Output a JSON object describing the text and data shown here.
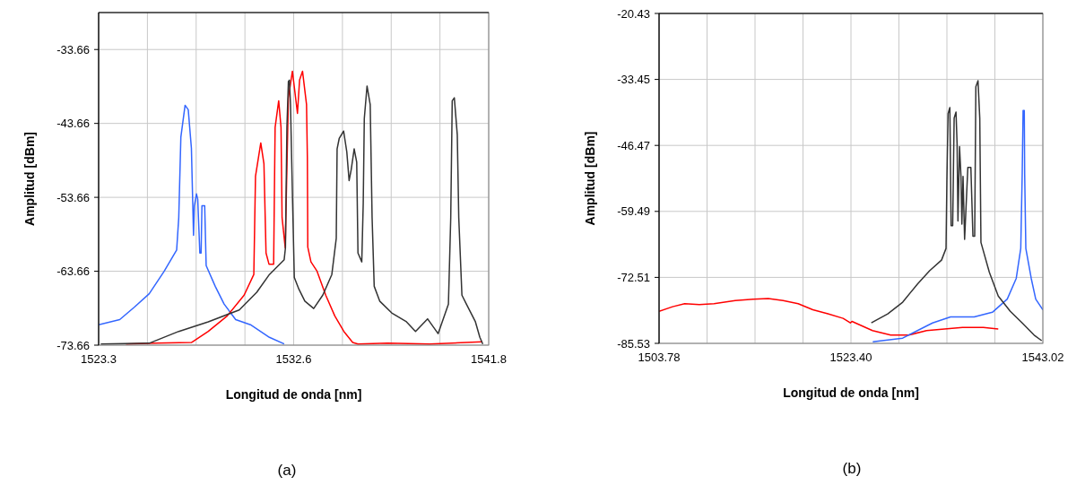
{
  "chart_data": [
    {
      "type": "line",
      "xlabel": "Longitud de onda [nm]",
      "ylabel": "Amplitud [dBm]",
      "annotations": [
        "(a)"
      ],
      "grid": true,
      "xlim": [
        1523.3,
        1541.8
      ],
      "ylim": [
        -73.66,
        -28.66
      ],
      "xticks": [
        1523.3,
        {
          "value": 1525.6125,
          "label": null
        },
        {
          "value": 1527.925,
          "label": null
        },
        {
          "value": 1530.2375,
          "label": null
        },
        {
          "value": 1532.55,
          "label": "1532.6"
        },
        {
          "value": 1534.8625,
          "label": null
        },
        {
          "value": 1537.175,
          "label": null
        },
        {
          "value": 1539.4875,
          "label": null
        },
        1541.8
      ],
      "yticks": [
        -73.66,
        -63.66,
        -53.66,
        -43.66,
        -33.66
      ],
      "series": [
        {
          "color": "#3366ff",
          "x": [
            1523.3,
            1524.3,
            1525.0,
            1525.7,
            1526.4,
            1527.0,
            1527.1,
            1527.2,
            1527.4,
            1527.55,
            1527.7,
            1527.8,
            1527.84,
            1527.94,
            1528.0,
            1528.1,
            1528.16,
            1528.2,
            1528.33,
            1528.4,
            1528.83,
            1529.25,
            1529.8,
            1530.5,
            1531.4,
            1532.1
          ],
          "values": [
            -70.9,
            -70.2,
            -68.5,
            -66.7,
            -63.7,
            -60.8,
            -56.4,
            -45.5,
            -41.2,
            -41.8,
            -47.0,
            -58.8,
            -54.8,
            -53.2,
            -53.9,
            -61.2,
            -61.2,
            -54.8,
            -54.8,
            -62.9,
            -65.7,
            -68.1,
            -70.2,
            -70.9,
            -72.6,
            -73.5
          ]
        },
        {
          "color": "#ff0000",
          "x": [
            1524.6,
            1526.0,
            1527.7,
            1528.5,
            1529.4,
            1530.2,
            1530.66,
            1530.74,
            1530.99,
            1531.14,
            1531.24,
            1531.38,
            1531.6,
            1531.67,
            1531.84,
            1531.95,
            1532.0,
            1532.15,
            1532.3,
            1532.49,
            1532.73,
            1532.83,
            1532.97,
            1533.16,
            1533.2,
            1533.22,
            1533.37,
            1533.65,
            1534.07,
            1534.5,
            1534.93,
            1535.35,
            1535.6,
            1537.0,
            1539.0,
            1541.5
          ],
          "values": [
            -73.5,
            -73.4,
            -73.3,
            -71.8,
            -69.7,
            -66.9,
            -64.1,
            -50.8,
            -46.3,
            -49.1,
            -61.2,
            -62.7,
            -62.7,
            -44.2,
            -40.6,
            -44.2,
            -56.4,
            -60.5,
            -40.2,
            -36.6,
            -42.3,
            -37.8,
            -36.6,
            -41.1,
            -48.3,
            -60.4,
            -62.4,
            -63.6,
            -66.9,
            -69.7,
            -71.8,
            -73.3,
            -73.5,
            -73.4,
            -73.5,
            -73.2
          ]
        },
        {
          "color": "#333333",
          "x": [
            1523.4,
            1525.7,
            1527.1,
            1528.5,
            1529.97,
            1530.8,
            1531.4,
            1532.1,
            1532.16,
            1532.23,
            1532.3,
            1532.35,
            1532.4,
            1532.5,
            1532.58,
            1532.8,
            1533.08,
            1533.5,
            1533.93,
            1534.36,
            1534.57,
            1534.61,
            1534.71,
            1534.92,
            1535.07,
            1535.18,
            1535.28,
            1535.42,
            1535.54,
            1535.6,
            1535.78,
            1535.85,
            1535.9,
            1536.03,
            1536.18,
            1536.27,
            1536.37,
            1536.63,
            1537.2,
            1537.9,
            1538.33,
            1538.9,
            1539.4,
            1539.89,
            1540.0,
            1540.07,
            1540.17,
            1540.31,
            1540.38,
            1540.53,
            1540.74,
            1541.17,
            1541.38,
            1541.52
          ],
          "values": [
            -73.5,
            -73.4,
            -71.8,
            -70.5,
            -68.9,
            -66.5,
            -64.1,
            -62.1,
            -60.5,
            -44.2,
            -38.0,
            -37.8,
            -41.1,
            -54.4,
            -64.5,
            -66.1,
            -67.7,
            -68.7,
            -66.9,
            -64.1,
            -59.2,
            -47.1,
            -45.7,
            -44.7,
            -47.5,
            -51.4,
            -49.9,
            -47.1,
            -48.9,
            -61.2,
            -62.4,
            -54.4,
            -43.0,
            -38.6,
            -41.1,
            -56.4,
            -65.7,
            -67.7,
            -69.3,
            -70.5,
            -71.8,
            -70.1,
            -72.1,
            -68.1,
            -56.4,
            -40.6,
            -40.2,
            -45.2,
            -56.4,
            -66.9,
            -68.1,
            -70.5,
            -72.6,
            -73.5
          ]
        }
      ]
    },
    {
      "type": "line",
      "xlabel": "Longitud de onda [nm]",
      "ylabel": "Amplitud [dBm]",
      "annotations": [
        "(b)"
      ],
      "grid": true,
      "xlim": [
        1503.78,
        1543.02
      ],
      "ylim": [
        -85.53,
        -20.43
      ],
      "xticks": [
        1503.78,
        {
          "value": 1508.685,
          "label": null
        },
        {
          "value": 1513.59,
          "label": null
        },
        {
          "value": 1518.495,
          "label": null
        },
        {
          "value": 1523.4,
          "label": "1523.40"
        },
        {
          "value": 1528.305,
          "label": null
        },
        {
          "value": 1533.21,
          "label": null
        },
        {
          "value": 1538.115,
          "label": null
        },
        1543.02
      ],
      "yticks": [
        -85.53,
        -72.51,
        -59.49,
        -46.47,
        -33.45,
        -20.43
      ],
      "series": [
        {
          "color": "#ff0000",
          "x": [
            1503.78,
            1505.16,
            1506.4,
            1507.9,
            1509.4,
            1511.57,
            1513.4,
            1514.94,
            1516.46,
            1518.0,
            1519.5,
            1521.04,
            1522.6,
            1523.34,
            1523.5,
            1525.6,
            1527.46,
            1529.3,
            1531.13,
            1532.96,
            1534.8,
            1536.94,
            1538.46
          ],
          "values": [
            -79.2,
            -78.3,
            -77.7,
            -77.9,
            -77.7,
            -77.1,
            -76.8,
            -76.7,
            -77.1,
            -77.7,
            -78.9,
            -79.7,
            -80.6,
            -81.5,
            -81.2,
            -83.0,
            -83.9,
            -83.9,
            -83.0,
            -82.7,
            -82.4,
            -82.4,
            -82.7
          ]
        },
        {
          "color": "#3366ff",
          "x": [
            1525.63,
            1528.69,
            1531.74,
            1533.58,
            1536.0,
            1537.86,
            1539.38,
            1540.3,
            1540.76,
            1540.91,
            1541.0,
            1541.12,
            1541.16,
            1541.28,
            1541.83,
            1542.29,
            1543.02
          ],
          "values": [
            -85.2,
            -84.5,
            -81.5,
            -80.3,
            -80.3,
            -79.4,
            -76.8,
            -72.7,
            -66.8,
            -52.0,
            -39.6,
            -39.6,
            -52.0,
            -66.8,
            -72.7,
            -76.8,
            -78.9
          ]
        },
        {
          "color": "#333333",
          "x": [
            1525.48,
            1527.16,
            1528.69,
            1530.21,
            1531.44,
            1532.66,
            1533.12,
            1533.21,
            1533.33,
            1533.51,
            1533.64,
            1533.8,
            1533.95,
            1534.14,
            1534.25,
            1534.34,
            1534.5,
            1534.65,
            1534.74,
            1534.86,
            1535.02,
            1535.35,
            1535.66,
            1535.87,
            1536.05,
            1536.17,
            1536.39,
            1536.57,
            1536.69,
            1537.55,
            1538.46,
            1539.69,
            1540.91,
            1542.13,
            1542.9
          ],
          "values": [
            -81.5,
            -79.7,
            -77.4,
            -73.8,
            -71.2,
            -69.1,
            -66.8,
            -53.2,
            -40.2,
            -39.0,
            -62.3,
            -62.3,
            -41.1,
            -39.9,
            -46.1,
            -61.4,
            -46.7,
            -52.6,
            -62.0,
            -52.6,
            -65.0,
            -50.8,
            -50.8,
            -64.4,
            -64.4,
            -34.9,
            -33.7,
            -41.1,
            -65.6,
            -71.5,
            -76.2,
            -79.2,
            -81.5,
            -83.9,
            -85.0
          ]
        }
      ]
    }
  ]
}
